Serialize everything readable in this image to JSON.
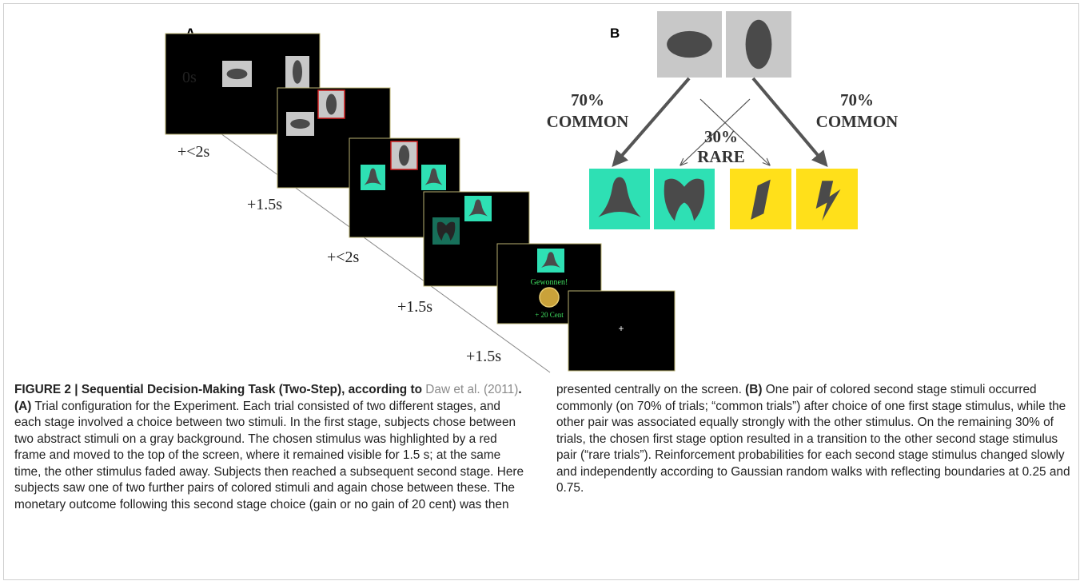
{
  "panel_a": {
    "label": "A",
    "timeline": [
      "0s",
      "+<2s",
      "+1.5s",
      "+<2s",
      "+1.5s",
      "+1.5s"
    ],
    "feedback_text": "Gewonnen!",
    "reward_text": "+ 20 Cent",
    "fixation": "+"
  },
  "panel_b": {
    "label": "B",
    "left_percent": "70%",
    "left_label": "COMMON",
    "rare_percent": "30%",
    "rare_label": "RARE",
    "right_percent": "70%",
    "right_label": "COMMON"
  },
  "caption": {
    "title": "FIGURE 2 | Sequential Decision-Making Task (Two-Step), according to",
    "citation": "Daw et al. (2011)",
    "label_a": ". (A)",
    "text_a": "Trial configuration for the Experiment. Each trial consisted of two different stages, and each stage involved a choice between two stimuli. In the first stage, subjects chose between two abstract stimuli on a gray background. The chosen stimulus was highlighted by a red frame and moved to the top of the screen, where it remained visible for 1.5 s; at the same time, the other stimulus faded away. Subjects then reached a subsequent second stage. Here subjects saw one of two further pairs of colored stimuli and again chose between these. The monetary outcome following this second stage choice (gain or no gain of 20 cent) was then presented centrally on the screen.",
    "label_b": "(B)",
    "text_b": "One pair of colored second stage stimuli occurred commonly (on 70% of trials; “common trials”) after choice of one first stage stimulus, while the other pair was associated equally strongly with the other stimulus. On the remaining 30% of trials, the chosen first stage option resulted in a transition to the other second stage stimulus pair (“rare trials”). Reinforcement probabilities for each second stage stimulus changed slowly and independently according to Gaussian random walks with reflecting boundaries at 0.25 and 0.75."
  }
}
